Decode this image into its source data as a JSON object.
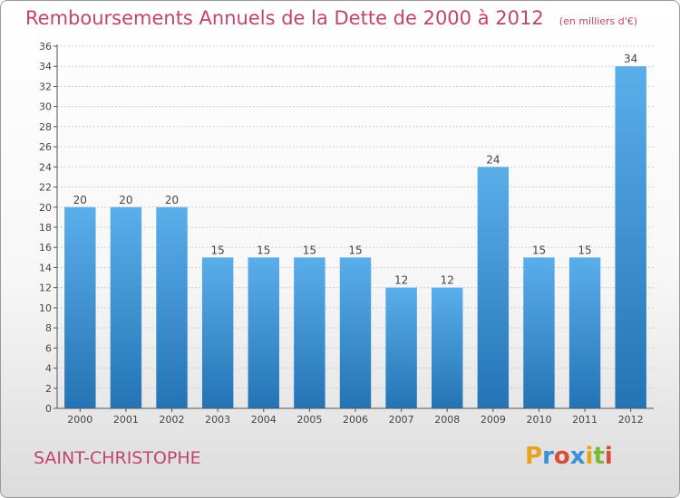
{
  "title": "Remboursements Annuels de la Dette de 2000 à 2012",
  "unit": "(en milliers d'€)",
  "city": "SAINT-CHRISTOPHE",
  "logo": {
    "text": "Proxiti",
    "letters": [
      "P",
      "r",
      "o",
      "x",
      "i",
      "t",
      "i"
    ],
    "colors": [
      "#e8a21c",
      "#3a8fd6",
      "#d94c3c",
      "#3a8fd6",
      "#e8a21c",
      "#7ab834",
      "#d94c3c"
    ]
  },
  "colors": {
    "bar_light": "#5aaeea",
    "bar_dark": "#2474b5",
    "title": "#c0446d",
    "text": "#444444"
  },
  "chart_data": {
    "type": "bar",
    "categories": [
      "2000",
      "2001",
      "2002",
      "2003",
      "2004",
      "2005",
      "2006",
      "2007",
      "2008",
      "2009",
      "2010",
      "2011",
      "2012"
    ],
    "values": [
      20,
      20,
      20,
      15,
      15,
      15,
      15,
      12,
      12,
      24,
      15,
      15,
      34
    ],
    "data_labels": [
      "20",
      "20",
      "20",
      "15",
      "15",
      "15",
      "15",
      "12",
      "12",
      "24",
      "15",
      "15",
      "34"
    ],
    "y_ticks": [
      0,
      2,
      4,
      6,
      8,
      10,
      12,
      14,
      16,
      18,
      20,
      22,
      24,
      26,
      28,
      30,
      32,
      34,
      36
    ],
    "ylim": [
      0,
      36
    ],
    "grid": true,
    "xlabel": "",
    "ylabel": ""
  }
}
